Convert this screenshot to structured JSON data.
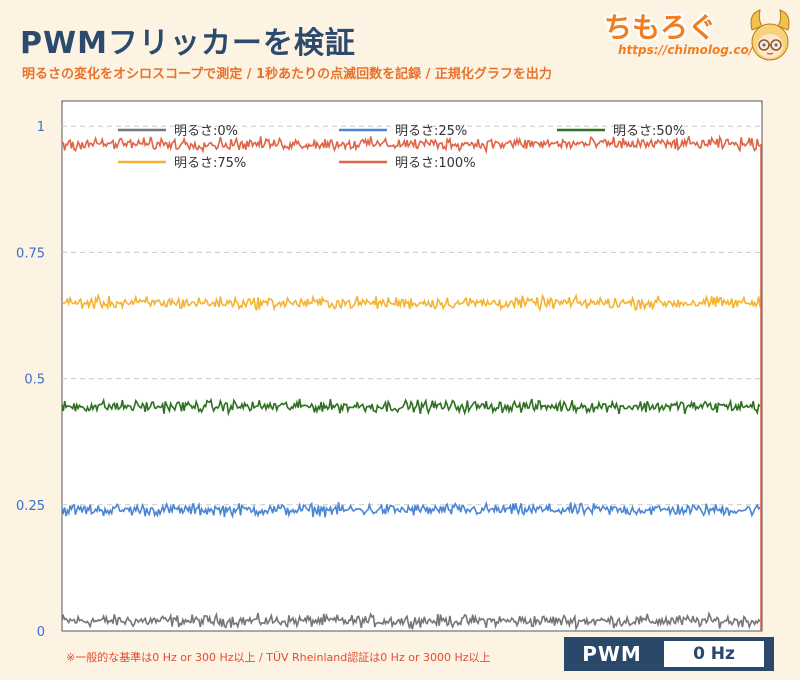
{
  "header": {
    "title": "PWMフリッカーを検証",
    "subtitle": "明るさの変化をオシロスコープで測定 / 1秒あたりの点滅回数を記録 / 正規化グラフを出力"
  },
  "logo": {
    "name": "ちもろぐ",
    "url": "https://chimolog.co/"
  },
  "footnote": "※一般的な基準は0 Hz or 300 Hz以上 / TÜV Rheinland認証は0 Hz or 3000 Hz以上",
  "badge": {
    "label": "PWM",
    "value": "0 Hz"
  },
  "chart_data": {
    "type": "line",
    "title": "",
    "xlabel": "",
    "ylabel": "",
    "ylim": [
      0,
      1.05
    ],
    "yticks": [
      "0",
      "0.25",
      "0.5",
      "0.75",
      "1"
    ],
    "ytick_values": [
      0,
      0.25,
      0.5,
      0.75,
      1
    ],
    "grid": "horizontal dashed",
    "legend_position": "top",
    "noise_amplitude": 0.008,
    "series": [
      {
        "name": "明るさ:0%",
        "color": "#767676",
        "level": 0.02
      },
      {
        "name": "明るさ:25%",
        "color": "#4a86d4",
        "level": 0.24
      },
      {
        "name": "明るさ:50%",
        "color": "#2e7021",
        "level": 0.445
      },
      {
        "name": "明るさ:75%",
        "color": "#f4b432",
        "level": 0.65
      },
      {
        "name": "明るさ:100%",
        "color": "#e06446",
        "level": 0.965
      }
    ],
    "samples": 520
  }
}
